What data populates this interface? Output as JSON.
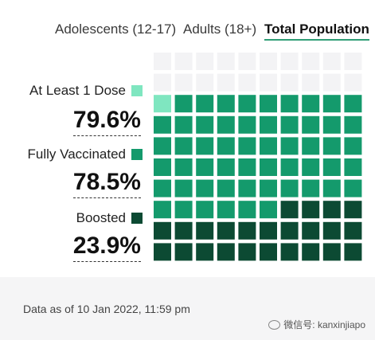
{
  "tabs": [
    {
      "label": "Adolescents (12-17)",
      "active": false
    },
    {
      "label": "Adults (18+)",
      "active": false
    },
    {
      "label": "Total Population",
      "active": true
    }
  ],
  "colors": {
    "at_least_1_dose": "#7fe6c0",
    "fully_vaccinated": "#149a6c",
    "boosted": "#0c4a33",
    "empty": "#f3f3f5",
    "tab_underline": "#2f9e76"
  },
  "chart_data": {
    "type": "waffle",
    "grid": {
      "rows": 10,
      "cols": 10
    },
    "series": [
      {
        "name": "At Least 1 Dose",
        "value": 79.6,
        "value_label": "79.6%",
        "color": "#7fe6c0"
      },
      {
        "name": "Fully Vaccinated",
        "value": 78.5,
        "value_label": "78.5%",
        "color": "#149a6c"
      },
      {
        "name": "Boosted",
        "value": 23.9,
        "value_label": "23.9%",
        "color": "#0c4a33"
      }
    ]
  },
  "footer": {
    "note": "Data as of 10 Jan 2022, 11:59 pm",
    "watermark": "微信号: kanxinjiapo"
  }
}
